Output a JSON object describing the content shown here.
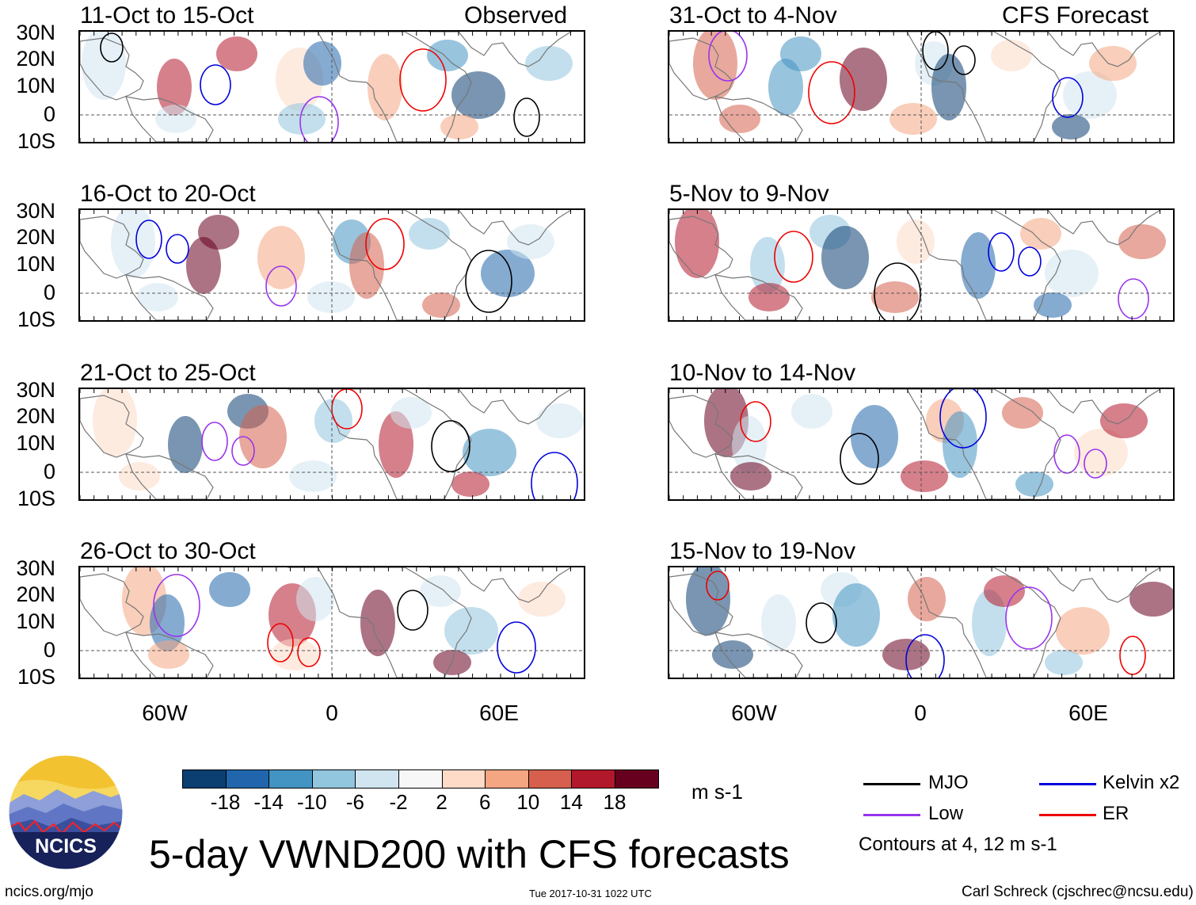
{
  "title": "5-day VWND200 with CFS forecasts",
  "headers": {
    "observed": "Observed",
    "forecast": "CFS Forecast"
  },
  "panels": [
    {
      "label": "11-Oct to 15-Oct",
      "kind": "observed"
    },
    {
      "label": "16-Oct to 20-Oct",
      "kind": "observed"
    },
    {
      "label": "21-Oct to 25-Oct",
      "kind": "observed"
    },
    {
      "label": "26-Oct to 30-Oct",
      "kind": "observed"
    },
    {
      "label": "31-Oct to 4-Nov",
      "kind": "forecast"
    },
    {
      "label": "5-Nov to 9-Nov",
      "kind": "forecast"
    },
    {
      "label": "10-Nov to 14-Nov",
      "kind": "forecast"
    },
    {
      "label": "15-Nov to 19-Nov",
      "kind": "forecast"
    }
  ],
  "lat_labels": [
    "30N",
    "20N",
    "10N",
    "0",
    "10S"
  ],
  "lon_labels": [
    "60W",
    "0",
    "60E"
  ],
  "colorbar": {
    "labels": [
      "-18",
      "-14",
      "-10",
      "-6",
      "-2",
      "2",
      "6",
      "10",
      "14",
      "18"
    ],
    "units": "m s-1",
    "colors": [
      "#0b3e71",
      "#2166ac",
      "#4393c3",
      "#92c5de",
      "#d1e5f0",
      "#f7f7f7",
      "#fddbc7",
      "#f4a582",
      "#d6604d",
      "#b2182b",
      "#67001f"
    ]
  },
  "legend": {
    "items": [
      {
        "label": "MJO",
        "color": "#000000"
      },
      {
        "label": "Kelvin x2",
        "color": "#0000dd"
      },
      {
        "label": "Low",
        "color": "#9933ee"
      },
      {
        "label": "ER",
        "color": "#ee0000"
      }
    ],
    "note": "Contours at 4, 12 m s-1"
  },
  "footer": {
    "logo_text": "NCICS",
    "url": "ncics.org/mjo",
    "timestamp": "Tue 2017-10-31 1022 UTC",
    "credit": "Carl Schreck (cjschrec@ncsu.edu)"
  }
}
